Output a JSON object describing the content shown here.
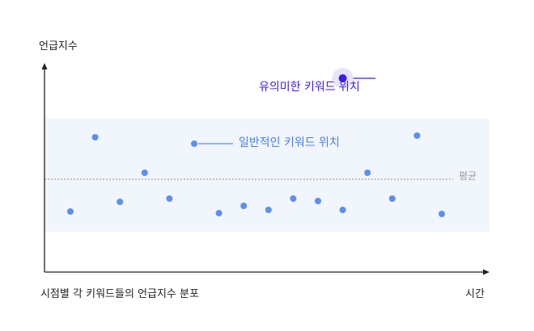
{
  "labels": {
    "y_axis": "언급지수",
    "x_axis": "시간",
    "caption": "시점별 각 키워드들의 언급지수 분포",
    "average": "평균",
    "significant": "유의미한 키워드 위치",
    "general": "일반적인 키워드 위치"
  },
  "colors": {
    "band": "#f1f5fc",
    "general_point": "#5b8ff0",
    "significant_point": "#3a1de8",
    "significant_halo": "#e6e3fa",
    "axis": "#222222",
    "average_line": "#8a8f99"
  },
  "chart_data": {
    "type": "scatter",
    "xlabel": "시간",
    "ylabel": "언급지수",
    "annotations": [
      "평균",
      "일반적인 키워드 위치",
      "유의미한 키워드 위치"
    ],
    "general_points": [
      {
        "x": 1,
        "y": 0.6
      },
      {
        "x": 2,
        "y": 1.52
      },
      {
        "x": 3,
        "y": 0.72
      },
      {
        "x": 4,
        "y": 1.08
      },
      {
        "x": 5,
        "y": 0.76
      },
      {
        "x": 6,
        "y": 1.44
      },
      {
        "x": 7,
        "y": 0.58
      },
      {
        "x": 8,
        "y": 0.67
      },
      {
        "x": 9,
        "y": 0.62
      },
      {
        "x": 10,
        "y": 0.76
      },
      {
        "x": 11,
        "y": 0.73
      },
      {
        "x": 12,
        "y": 0.62
      },
      {
        "x": 13,
        "y": 1.08
      },
      {
        "x": 14,
        "y": 0.76
      },
      {
        "x": 15,
        "y": 1.54
      },
      {
        "x": 16,
        "y": 0.57
      }
    ],
    "significant_points": [
      {
        "x": 12,
        "y": 2.25
      }
    ],
    "average": 1.0
  }
}
